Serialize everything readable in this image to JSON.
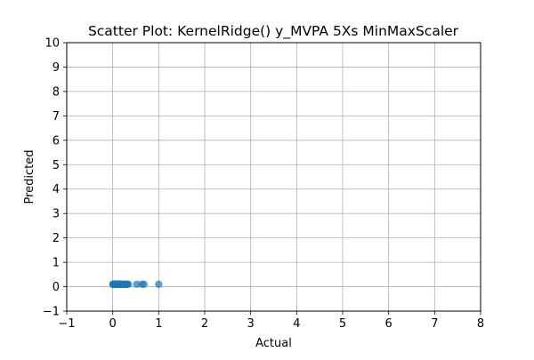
{
  "chart_data": {
    "type": "scatter",
    "title": "Scatter Plot: KernelRidge() y_MVPA 5Xs MinMaxScaler",
    "xlabel": "Actual",
    "ylabel": "Predicted",
    "xlim": [
      -1,
      8
    ],
    "ylim": [
      -1,
      10
    ],
    "xticks": [
      -1,
      0,
      1,
      2,
      3,
      4,
      5,
      6,
      7,
      8
    ],
    "yticks": [
      -1,
      0,
      1,
      2,
      3,
      4,
      5,
      6,
      7,
      8,
      9,
      10
    ],
    "grid": true,
    "point_color": "#1f77b4",
    "point_alpha": 0.7,
    "series": [
      {
        "x": [
          0.0,
          0.01,
          0.02,
          0.03,
          0.04,
          0.05,
          0.06,
          0.07,
          0.08,
          0.09,
          0.1,
          0.11,
          0.12,
          0.13,
          0.14,
          0.15,
          0.16,
          0.17,
          0.18,
          0.19,
          0.2,
          0.22,
          0.24,
          0.26,
          0.28,
          0.3,
          0.32,
          0.34,
          0.52,
          0.63,
          0.68,
          1.0
        ],
        "y": [
          0.1,
          0.1,
          0.09,
          0.1,
          0.1,
          0.11,
          0.1,
          0.09,
          0.1,
          0.1,
          0.11,
          0.1,
          0.1,
          0.1,
          0.09,
          0.1,
          0.1,
          0.11,
          0.1,
          0.1,
          0.1,
          0.1,
          0.09,
          0.1,
          0.1,
          0.1,
          0.1,
          0.1,
          0.1,
          0.1,
          0.1,
          0.1
        ]
      }
    ]
  }
}
